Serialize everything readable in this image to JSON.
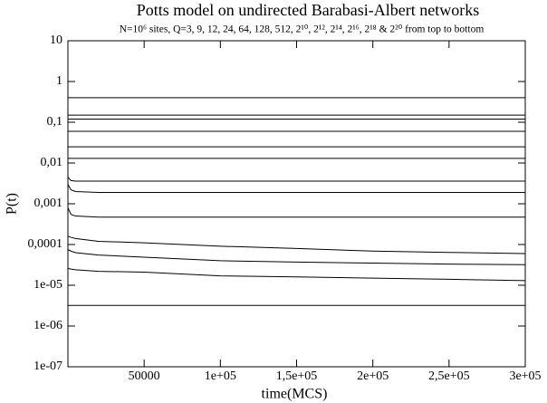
{
  "chart_data": {
    "type": "line",
    "title": "Potts model on undirected Barabasi-Albert networks",
    "subtitle": "N=10⁶ sites, Q=3, 9, 12, 24, 64, 128, 512, 2¹⁰, 2¹², 2¹⁴, 2¹⁶, 2¹⁸ & 2²⁰ from top to bottom",
    "x_label": "time(MCS)",
    "y_label": "P(t)",
    "log_y": true,
    "xlim": [
      0,
      300000
    ],
    "ylim": [
      1e-07,
      10
    ],
    "xticks": [
      50000,
      {
        "value": 100000,
        "label": "1e+05"
      },
      {
        "value": 150000,
        "label": "1,5e+05"
      },
      {
        "value": 200000,
        "label": "2e+05"
      },
      {
        "value": 250000,
        "label": "2,5e+05"
      },
      {
        "value": 300000,
        "label": "3e+05"
      }
    ],
    "yticks": [
      {
        "value": 1e-07,
        "label": "1e-07"
      },
      {
        "value": 1e-06,
        "label": "1e-06"
      },
      {
        "value": 1e-05,
        "label": "1e-05"
      },
      {
        "value": 0.0001,
        "label": "0,0001"
      },
      {
        "value": 0.001,
        "label": "0,001"
      },
      {
        "value": 0.01,
        "label": "0,01"
      },
      {
        "value": 0.1,
        "label": "0,1"
      },
      1,
      10
    ],
    "x": [
      0,
      2000,
      5000,
      20000,
      50000,
      100000,
      150000,
      200000,
      250000,
      300000
    ],
    "series": [
      {
        "color": "#000000",
        "values": [
          0.4,
          0.4,
          0.4,
          0.4,
          0.4,
          0.4,
          0.4,
          0.4,
          0.4,
          0.4
        ]
      },
      {
        "color": "#000000",
        "values": [
          0.15,
          0.15,
          0.15,
          0.15,
          0.15,
          0.15,
          0.15,
          0.15,
          0.15,
          0.15
        ]
      },
      {
        "color": "#000000",
        "values": [
          0.12,
          0.12,
          0.12,
          0.12,
          0.12,
          0.12,
          0.12,
          0.12,
          0.12,
          0.12
        ]
      },
      {
        "color": "#000000",
        "values": [
          0.06,
          0.06,
          0.06,
          0.06,
          0.06,
          0.06,
          0.06,
          0.06,
          0.06,
          0.06
        ]
      },
      {
        "color": "#000000",
        "values": [
          0.025,
          0.025,
          0.025,
          0.025,
          0.025,
          0.025,
          0.025,
          0.025,
          0.025,
          0.025
        ]
      },
      {
        "color": "#000000",
        "values": [
          0.013,
          0.013,
          0.013,
          0.013,
          0.013,
          0.013,
          0.013,
          0.013,
          0.013,
          0.013
        ]
      },
      {
        "color": "#000000",
        "values": [
          0.0045,
          0.0037,
          0.0036,
          0.0036,
          0.0036,
          0.0036,
          0.0036,
          0.0036,
          0.0036,
          0.0036
        ]
      },
      {
        "color": "#000000",
        "values": [
          0.003,
          0.0022,
          0.002,
          0.0019,
          0.0019,
          0.0019,
          0.0019,
          0.0019,
          0.0019,
          0.0019
        ]
      },
      {
        "color": "#000000",
        "values": [
          0.0008,
          0.00055,
          0.0005,
          0.00047,
          0.00047,
          0.00047,
          0.00047,
          0.00047,
          0.00047,
          0.00047
        ]
      },
      {
        "color": "#000000",
        "values": [
          0.00016,
          0.00015,
          0.00014,
          0.00012,
          0.00011,
          9.1e-05,
          8e-05,
          6.9e-05,
          6.4e-05,
          6e-05
        ]
      },
      {
        "color": "#000000",
        "values": [
          7.5e-05,
          6.9e-05,
          6.3e-05,
          5.5e-05,
          4.9e-05,
          4e-05,
          3.7e-05,
          3.5e-05,
          3.3e-05,
          3.2e-05
        ]
      },
      {
        "color": "#000000",
        "values": [
          2.6e-05,
          2.5e-05,
          2.4e-05,
          2.2e-05,
          2.1e-05,
          1.7e-05,
          1.6e-05,
          1.5e-05,
          1.4e-05,
          1.3e-05
        ]
      },
      {
        "color": "#000000",
        "values": [
          3.2e-06,
          3.2e-06,
          3.2e-06,
          3.2e-06,
          3.2e-06,
          3.2e-06,
          3.2e-06,
          3.2e-06,
          3.2e-06,
          3.2e-06
        ]
      }
    ]
  }
}
